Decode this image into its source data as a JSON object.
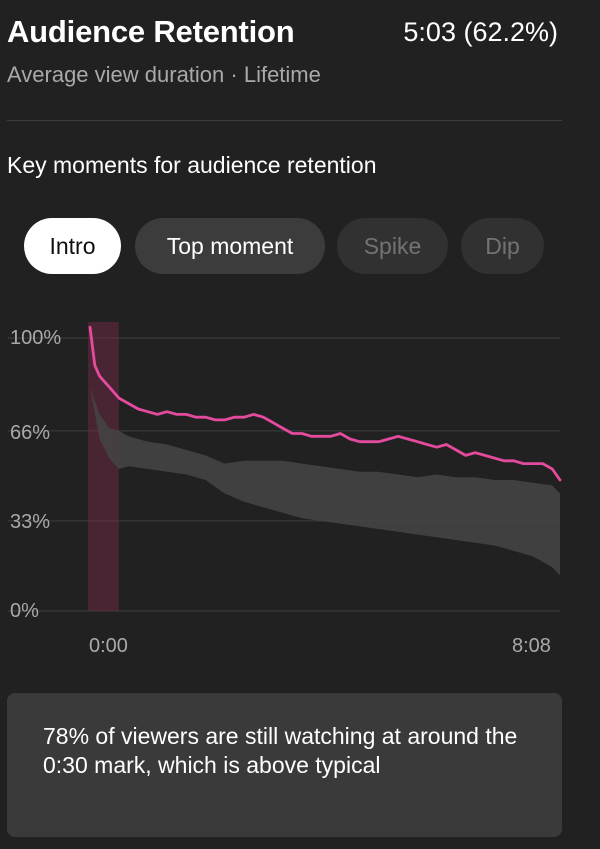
{
  "header": {
    "title": "Audience Retention",
    "value": "5:03 (62.2%)",
    "subtitle": "Average view duration · Lifetime"
  },
  "section": {
    "heading": "Key moments for audience retention"
  },
  "chips": [
    {
      "label": "Intro",
      "state": "selected"
    },
    {
      "label": "Top moment",
      "state": "enabled"
    },
    {
      "label": "Spike",
      "state": "disabled"
    },
    {
      "label": "Dip",
      "state": "disabled"
    }
  ],
  "colors": {
    "background": "#212121",
    "retention_line": "#e44a9e",
    "typical_band": "#444444",
    "intro_highlight": "#7a2a4c"
  },
  "chart_data": {
    "type": "line",
    "y_tick_labels": [
      "100%",
      "66%",
      "33%",
      "0%"
    ],
    "y_ticks": [
      100,
      66,
      33,
      0
    ],
    "ylim": [
      0,
      100
    ],
    "x_tick_labels": [
      "0:00",
      "8:08"
    ],
    "x_range_seconds": [
      0,
      488
    ],
    "grid": true,
    "highlight_region_seconds": [
      0,
      30
    ],
    "series": [
      {
        "role": "this-video",
        "x": [
          0,
          5,
          10,
          20,
          30,
          40,
          50,
          60,
          70,
          80,
          90,
          100,
          110,
          120,
          130,
          140,
          150,
          160,
          170,
          180,
          190,
          200,
          210,
          220,
          230,
          240,
          250,
          260,
          270,
          280,
          290,
          300,
          310,
          320,
          330,
          340,
          350,
          360,
          370,
          380,
          390,
          400,
          410,
          420,
          430,
          440,
          450,
          460,
          470,
          480,
          488
        ],
        "y": [
          104,
          90,
          86,
          82,
          78,
          76,
          74,
          73,
          72,
          73,
          72,
          72,
          71,
          71,
          70,
          70,
          71,
          71,
          72,
          71,
          69,
          67,
          65,
          65,
          64,
          64,
          64,
          65,
          63,
          62,
          62,
          62,
          63,
          64,
          63,
          62,
          61,
          60,
          61,
          59,
          57,
          58,
          57,
          56,
          55,
          55,
          54,
          54,
          54,
          52,
          48
        ]
      },
      {
        "role": "typical-range-upper",
        "x": [
          0,
          10,
          20,
          30,
          40,
          60,
          80,
          100,
          120,
          140,
          160,
          180,
          200,
          220,
          240,
          260,
          280,
          300,
          320,
          340,
          360,
          380,
          400,
          420,
          440,
          460,
          480,
          488
        ],
        "y": [
          82,
          72,
          67,
          66,
          64,
          62,
          61,
          59,
          57,
          54,
          55,
          55,
          55,
          54,
          53,
          52,
          51,
          51,
          50,
          49,
          50,
          49,
          49,
          48,
          48,
          47,
          46,
          43
        ]
      },
      {
        "role": "typical-range-lower",
        "x": [
          0,
          10,
          20,
          30,
          40,
          60,
          80,
          100,
          120,
          140,
          160,
          180,
          200,
          220,
          240,
          260,
          280,
          300,
          320,
          340,
          360,
          380,
          400,
          420,
          440,
          460,
          480,
          488
        ],
        "y": [
          82,
          63,
          56,
          52,
          53,
          52,
          51,
          50,
          48,
          43,
          40,
          38,
          36,
          34,
          33,
          32,
          31,
          30,
          29,
          28,
          27,
          26,
          25,
          24,
          22,
          20,
          16,
          13
        ]
      }
    ]
  },
  "insight": {
    "text": "78% of viewers are still watching at around the 0:30 mark, which is above typical"
  }
}
